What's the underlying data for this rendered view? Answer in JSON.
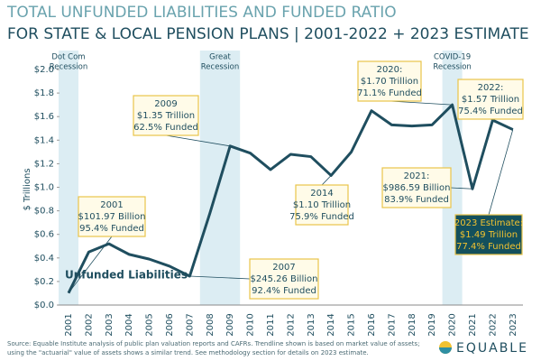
{
  "chart_data": {
    "type": "line",
    "title": "TOTAL UNFUNDED LIABILITIES AND FUNDED RATIO",
    "subtitle": "FOR STATE & LOCAL PENSION PLANS | 2001-2022 + 2023 ESTIMATE",
    "y_label": "$ Trillions",
    "categories": [
      "2001",
      "2002",
      "2003",
      "2004",
      "2005",
      "2006",
      "2007",
      "2008",
      "2009",
      "2010",
      "2011",
      "2012",
      "2013",
      "2014",
      "2015",
      "2016",
      "2017",
      "2018",
      "2019",
      "2020",
      "2021",
      "2022",
      "2023"
    ],
    "series": [
      {
        "name": "Unfunded Liabilities",
        "color": "#1f4e5f",
        "values": [
          0.10197,
          0.45,
          0.52,
          0.43,
          0.39,
          0.33,
          0.24526,
          0.78,
          1.35,
          1.29,
          1.15,
          1.28,
          1.26,
          1.1,
          1.3,
          1.65,
          1.53,
          1.52,
          1.53,
          1.7,
          0.98659,
          1.57,
          1.49
        ]
      }
    ],
    "ylim": [
      0,
      2
    ],
    "yticks": [
      {
        "value": 0,
        "label": "$0.0"
      },
      {
        "value": 0.2,
        "label": "$0.2"
      },
      {
        "value": 0.4,
        "label": "$0.4"
      },
      {
        "value": 0.6,
        "label": "$0.6"
      },
      {
        "value": 0.8,
        "label": "$0.8"
      },
      {
        "value": 1,
        "label": "$1.0"
      },
      {
        "value": 1.2,
        "label": "$1.2"
      },
      {
        "value": 1.4,
        "label": "$1.4"
      },
      {
        "value": 1.6,
        "label": "$1.6"
      },
      {
        "value": 1.8,
        "label": "$1.8"
      },
      {
        "value": 2,
        "label": "$2.0"
      }
    ],
    "recessions": [
      {
        "label": [
          "Dot Com",
          "Recession"
        ]
      },
      {
        "label": [
          "Great",
          "Recession"
        ]
      },
      {
        "label": [
          "COVID-19",
          "Recession"
        ]
      }
    ],
    "annotations": [
      {
        "lines": [
          "2001",
          "$101.97 Billion",
          "95.4% Funded"
        ]
      },
      {
        "lines": [
          "2009",
          "$1.35 Trillion",
          "62.5% Funded"
        ]
      },
      {
        "lines": [
          "2007",
          "$245.26 Billion",
          "92.4% Funded"
        ]
      },
      {
        "lines": [
          "2014",
          "$1.10 Trillion",
          "75.9% Funded"
        ]
      },
      {
        "lines": [
          "2020:",
          "$1.70 Trillion",
          "71.1% Funded"
        ]
      },
      {
        "lines": [
          "2021:",
          "$986.59 Billion",
          "83.9% Funded"
        ]
      },
      {
        "lines": [
          "2022:",
          "$1.57 Trillion",
          "75.4% Funded"
        ]
      },
      {
        "lines": [
          "2023 Estimate:",
          "$1.49 Trillion",
          "77.4% Funded"
        ]
      }
    ],
    "source": [
      "Source: Equable Institute analysis of public plan valuation reports and CAFRs. Trendline shown is based on market value of assets;",
      "using the \"actuarial\" value of assets shows a similar trend.  See methodology section for details on 2023 estimate."
    ],
    "logo": "EQUABLE"
  }
}
